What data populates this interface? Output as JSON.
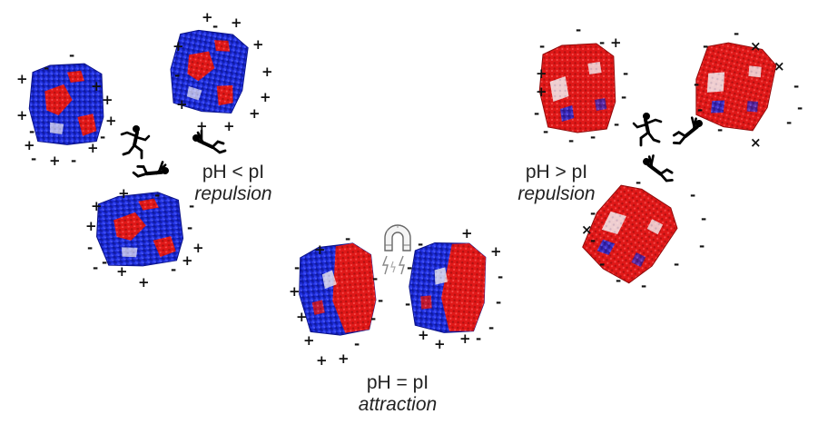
{
  "panels": {
    "low_ph": {
      "condition": "pH < pI",
      "effect": "repulsion"
    },
    "equal_ph": {
      "condition": "pH = pI",
      "effect": "attraction"
    },
    "high_ph": {
      "condition": "pH > pI",
      "effect": "repulsion"
    }
  },
  "colors": {
    "positive": "#1b2bd9",
    "negative": "#e01818",
    "neutral": "#f2eef0"
  },
  "icons": [
    "protein-surface",
    "running-figure-icon",
    "falling-figure-icon",
    "magnet-icon",
    "lightning-icon"
  ]
}
